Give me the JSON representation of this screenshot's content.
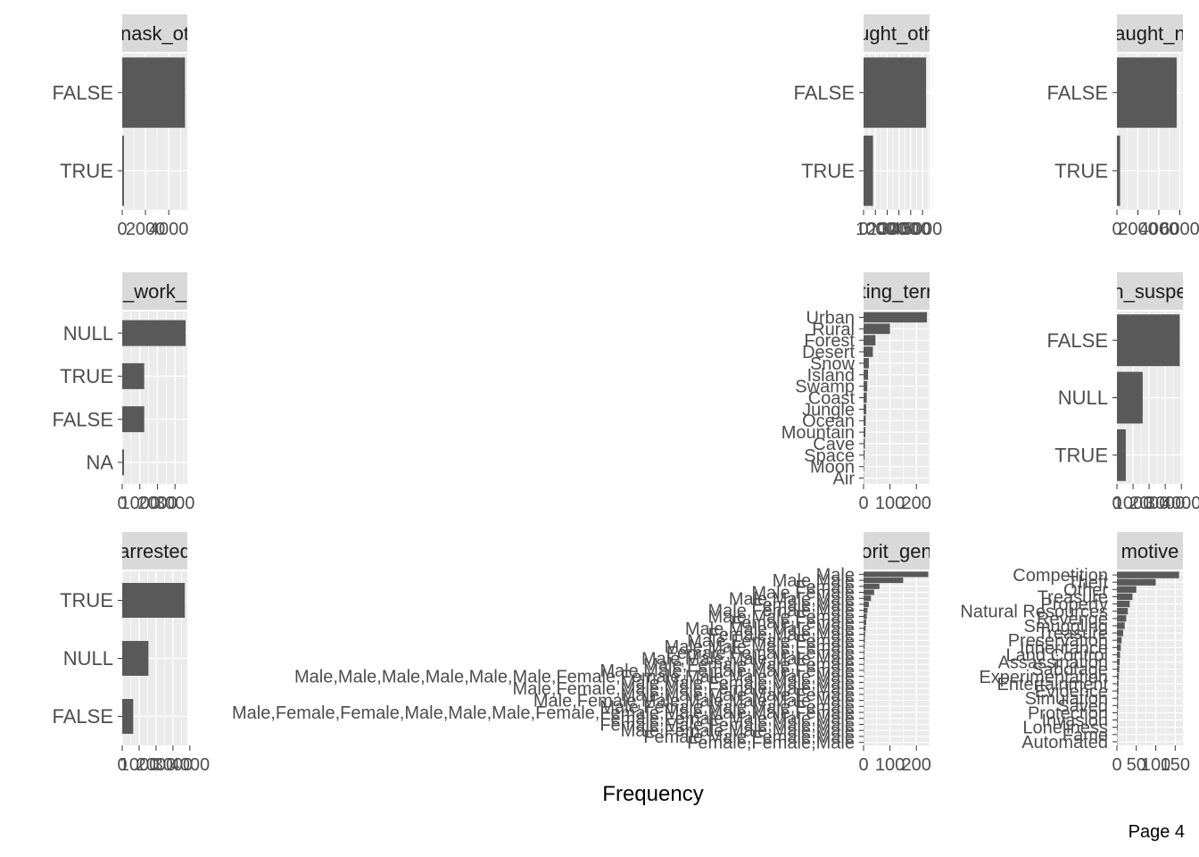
{
  "page_label": "Page 4",
  "x_axis_title": "Frequency",
  "colors": {
    "bar": "#595959",
    "panel_bg": "#EBEBEB",
    "strip_bg": "#D9D9D9",
    "grid": "#FFFFFF",
    "axis_text": "#4D4D4D",
    "text": "#1A1A1A"
  },
  "chart_data": [
    {
      "type": "bar",
      "orientation": "horizontal",
      "strip_title": "nask_ot",
      "categories": [
        "FALSE",
        "TRUE"
      ],
      "values": [
        5400,
        150
      ],
      "x_ticks": [
        0,
        2000,
        4000
      ],
      "x_tick_labels": [
        "0",
        "2000",
        "4000"
      ],
      "xlim": [
        0,
        5600
      ]
    },
    {
      "type": "bar",
      "orientation": "horizontal",
      "strip_title": "ught_oth",
      "categories": [
        "FALSE",
        "TRUE"
      ],
      "values": [
        5300,
        800
      ],
      "x_ticks": [
        0,
        1000,
        2000,
        3000,
        4000,
        5000
      ],
      "x_tick_labels": [
        "0",
        "1000",
        "2000",
        "3000",
        "4000",
        "5000"
      ],
      "xlim": [
        0,
        5600
      ]
    },
    {
      "type": "bar",
      "orientation": "horizontal",
      "strip_title": "aught_n",
      "categories": [
        "FALSE",
        "TRUE"
      ],
      "values": [
        5700,
        300
      ],
      "x_ticks": [
        0,
        2000,
        4000,
        6000
      ],
      "x_tick_labels": [
        "0",
        "2000",
        "4000",
        "6000"
      ],
      "xlim": [
        0,
        6300
      ]
    },
    {
      "type": "bar",
      "orientation": "horizontal",
      "strip_title": "_work_",
      "categories": [
        "NULL",
        "TRUE",
        "FALSE",
        "NA"
      ],
      "values": [
        3600,
        1250,
        1250,
        100
      ],
      "x_ticks": [
        0,
        1000,
        2000,
        3000
      ],
      "x_tick_labels": [
        "0",
        "1000",
        "2000",
        "3000"
      ],
      "xlim": [
        0,
        3700
      ]
    },
    {
      "type": "bar",
      "orientation": "horizontal",
      "strip_title": "ting_terr",
      "categories": [
        "Urban",
        "Rural",
        "Forest",
        "Desert",
        "Snow",
        "Island",
        "Swamp",
        "Coast",
        "Jungle",
        "Ocean",
        "Mountain",
        "Cave",
        "Space",
        "Moon",
        "Air"
      ],
      "values": [
        240,
        100,
        45,
        35,
        20,
        17,
        14,
        12,
        10,
        8,
        7,
        5,
        4,
        2,
        1
      ],
      "x_ticks": [
        0,
        100,
        200
      ],
      "x_tick_labels": [
        "0",
        "100",
        "200"
      ],
      "xlim": [
        0,
        250
      ]
    },
    {
      "type": "bar",
      "orientation": "horizontal",
      "strip_title": "n_suspe",
      "categories": [
        "FALSE",
        "NULL",
        "TRUE"
      ],
      "values": [
        3900,
        1600,
        550
      ],
      "x_ticks": [
        0,
        1000,
        2000,
        3000,
        4000
      ],
      "x_tick_labels": [
        "0",
        "1000",
        "2000",
        "3000",
        "4000"
      ],
      "xlim": [
        0,
        4100
      ]
    },
    {
      "type": "bar",
      "orientation": "horizontal",
      "strip_title": "arrested",
      "categories": [
        "TRUE",
        "NULL",
        "FALSE"
      ],
      "values": [
        3700,
        1550,
        650
      ],
      "x_ticks": [
        0,
        1000,
        2000,
        3000,
        4000
      ],
      "x_tick_labels": [
        "0",
        "1000",
        "2000",
        "3000",
        "4000"
      ],
      "xlim": [
        0,
        3850
      ]
    },
    {
      "type": "bar",
      "orientation": "horizontal",
      "strip_title": "orit_gen",
      "categories": [
        "Male",
        "Male,Male",
        "Female",
        "Male,Female",
        "Male,Male,Male",
        "Female,Male",
        "Male,Female,Male",
        "Male,Male,Female",
        "Female,Female",
        "Male,Male,Male,Male",
        "Female,Male,Male",
        "Male,Female,Female",
        "Male,Male,Male,Female",
        "Female,Female,Female",
        "Male,Male,Male,Male,Male",
        "Male,Female,Male,Female",
        "Male,Male,Female,Male,Female",
        "Male,Male,Male,Male,Male,Male,Female,Female,Male,Male,Male,Male",
        "Male,Male,Female,Male,Male",
        "Male,Female,Male,Male,Female,Male,Male",
        "Male,Male,Male,Male,Female",
        "Male,Female,Male,Male,Male,Male,Male",
        "Male,Female,Male,Male,Female",
        "Male,Female,Female,Male,Male,Male,Female,Female,Male,Male,Male,Female",
        "Female,Female,Male,Male,Male",
        "Female,Male,Female,Male,Male",
        "Male,Female,Male,Male,Male",
        "Female,Male,Female,Male",
        "Female,Female,Male"
      ],
      "values": [
        245,
        150,
        60,
        40,
        28,
        20,
        15,
        12,
        10,
        8,
        6,
        5,
        4,
        3,
        3,
        2,
        2,
        1,
        1,
        1,
        1,
        1,
        1,
        1,
        1,
        1,
        1,
        1,
        1
      ],
      "x_ticks": [
        0,
        100,
        200
      ],
      "x_tick_labels": [
        "0",
        "100",
        "200"
      ],
      "xlim": [
        0,
        250
      ]
    },
    {
      "type": "bar",
      "orientation": "horizontal",
      "strip_title": "motive",
      "categories": [
        "Competition",
        "Theft",
        "Other",
        "Treasure",
        "Property",
        "Natural Resources",
        "Revenge",
        "Smuggling",
        "Treasure",
        "Preservation",
        "Inheritance",
        "Land Control",
        "Assassination",
        "Sabotage",
        "Experimentation",
        "Entertainment",
        "Evidence",
        "Simulation",
        "Saved",
        "Protection",
        "Invasion",
        "Loneliness",
        "Fame",
        "Automated"
      ],
      "values": [
        160,
        100,
        50,
        40,
        33,
        28,
        24,
        20,
        16,
        12,
        10,
        8,
        7,
        6,
        5,
        4,
        4,
        3,
        3,
        2,
        2,
        2,
        1,
        1
      ],
      "x_ticks": [
        0,
        50,
        100,
        150
      ],
      "x_tick_labels": [
        "0",
        "50",
        "100",
        "150"
      ],
      "xlim": [
        0,
        170
      ]
    }
  ]
}
